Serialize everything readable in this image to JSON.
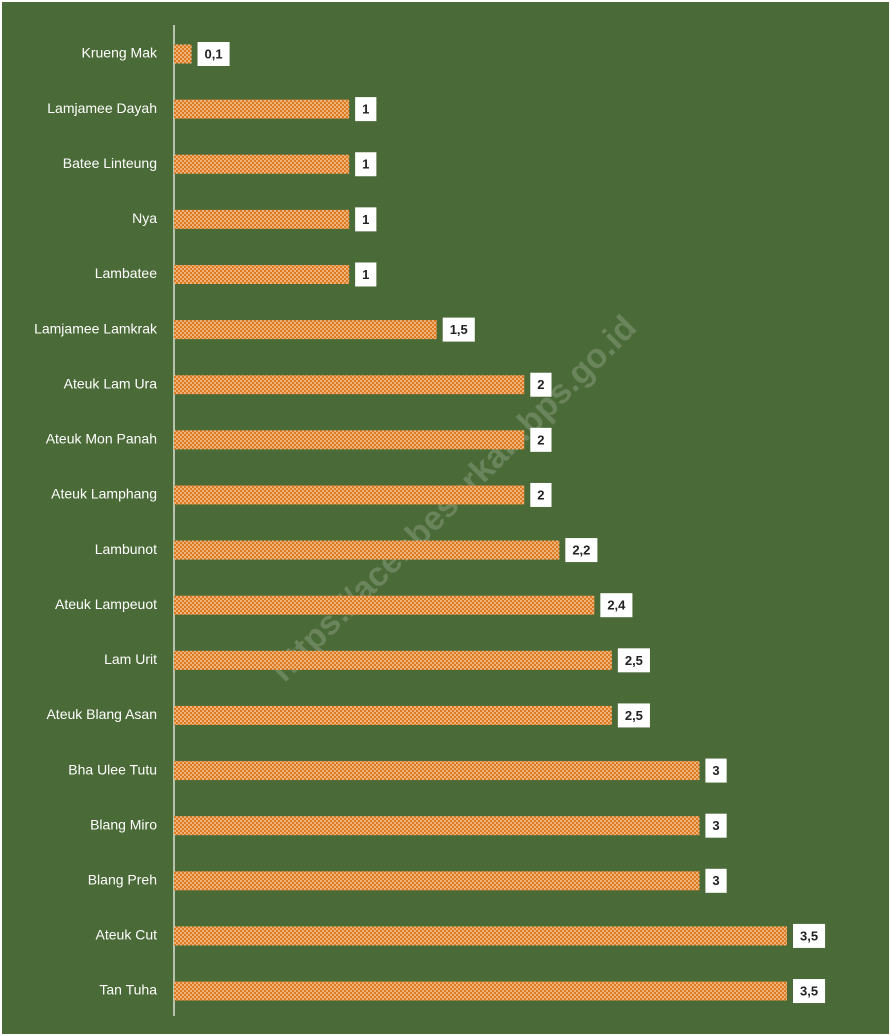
{
  "chart_data": {
    "type": "bar",
    "orientation": "horizontal",
    "categories": [
      "Krueng Mak",
      "Lamjamee Dayah",
      "Batee Linteung",
      "Nya",
      "Lambatee",
      "Lamjamee Lamkrak",
      "Ateuk Lam Ura",
      "Ateuk Mon Panah",
      "Ateuk Lamphang",
      "Lambunot",
      "Ateuk Lampeuot",
      "Lam Urit",
      "Ateuk Blang Asan",
      "Bha Ulee Tutu",
      "Blang Miro",
      "Blang Preh",
      "Ateuk Cut",
      "Tan Tuha"
    ],
    "values": [
      0.1,
      1,
      1,
      1,
      1,
      1.5,
      2,
      2,
      2,
      2.2,
      2.4,
      2.5,
      2.5,
      3,
      3,
      3,
      3.5,
      3.5
    ],
    "value_labels": [
      "0,1",
      "1",
      "1",
      "1",
      "1",
      "1,5",
      "2",
      "2",
      "2",
      "2,2",
      "2,4",
      "2,5",
      "2,5",
      "3",
      "3",
      "3",
      "3,5",
      "3,5"
    ],
    "color": "#e07a1f",
    "background": "#4a6a37",
    "watermark": "https://acehbesarkab.bps.go.id"
  }
}
